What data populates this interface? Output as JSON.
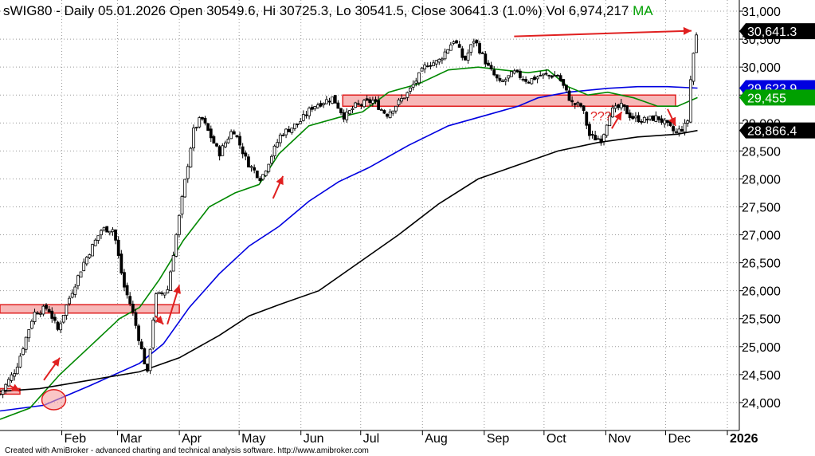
{
  "header": {
    "title": "sWIG80 - Daily 05.01.2026 Open 30549.6, Hi 30725.3, Lo 30541.5, Close 30641.3 (1.0%) Vol 6,974,217",
    "ma_label": "MA",
    "ma_color": "#00a000"
  },
  "footer": "Created with AmiBroker - advanced charting and technical analysis software. http://www.amibroker.com",
  "badges": [
    {
      "name": "close-badge",
      "text": "30,641.3",
      "value": 30641.3,
      "bg": "#000000",
      "fg": "#ffffff"
    },
    {
      "name": "ma-blue-badge",
      "text": "29,623.9",
      "value": 29623.9,
      "bg": "#0000e0",
      "fg": "#ffffff"
    },
    {
      "name": "ma-green-badge",
      "text": "29,455",
      "value": 29455,
      "bg": "#00a000",
      "fg": "#ffffff"
    },
    {
      "name": "ma-black-badge",
      "text": "28,866.4",
      "value": 28866.4,
      "bg": "#000000",
      "fg": "#ffffff"
    }
  ],
  "annotation_text": "???",
  "colors": {
    "annotation": "#e02020",
    "zone_fill": "#f7b8b8",
    "grid": "#999999"
  },
  "chart_data": {
    "type": "candlestick",
    "title": "sWIG80 - Daily 05.01.2026 Open 30549.6, Hi 30725.3, Lo 30541.5, Close 30641.3 (1.0%) Vol 6,974,217",
    "ylim": [
      23500,
      31200
    ],
    "y_ticks": [
      24000,
      24500,
      25000,
      25500,
      26000,
      26500,
      27000,
      27500,
      28000,
      28500,
      29000,
      29500,
      30000,
      30500,
      31000
    ],
    "y_tick_labels": [
      "24,000",
      "24,500",
      "25,000",
      "25,500",
      "26,000",
      "26,500",
      "27,000",
      "27,500",
      "28,000",
      "28,500",
      "29,000",
      "29,500",
      "30,000",
      "30,500",
      "31,000"
    ],
    "x_labels": [
      "Feb",
      "Mar",
      "Apr",
      "May",
      "Jun",
      "Jul",
      "Aug",
      "Sep",
      "Oct",
      "Nov",
      "Dec",
      "2026"
    ],
    "x_label_days": [
      31,
      59,
      90,
      120,
      151,
      181,
      212,
      243,
      273,
      304,
      334,
      365
    ],
    "x_range_days": [
      0,
      371
    ],
    "grid": true,
    "price_path": [
      [
        0,
        24150
      ],
      [
        8,
        24600
      ],
      [
        17,
        25600
      ],
      [
        24,
        25700
      ],
      [
        29,
        25300
      ],
      [
        34,
        25800
      ],
      [
        42,
        26500
      ],
      [
        51,
        27100
      ],
      [
        57,
        27100
      ],
      [
        62,
        26100
      ],
      [
        66,
        25700
      ],
      [
        70,
        25100
      ],
      [
        74,
        24500
      ],
      [
        78,
        25900
      ],
      [
        84,
        26000
      ],
      [
        88,
        26900
      ],
      [
        93,
        28000
      ],
      [
        97,
        28850
      ],
      [
        101,
        29100
      ],
      [
        110,
        28450
      ],
      [
        117,
        28900
      ],
      [
        124,
        28300
      ],
      [
        131,
        28000
      ],
      [
        136,
        28400
      ],
      [
        141,
        28800
      ],
      [
        150,
        29000
      ],
      [
        157,
        29300
      ],
      [
        167,
        29450
      ],
      [
        173,
        29100
      ],
      [
        178,
        29300
      ],
      [
        187,
        29400
      ],
      [
        194,
        29150
      ],
      [
        205,
        29550
      ],
      [
        214,
        30050
      ],
      [
        220,
        30100
      ],
      [
        228,
        30500
      ],
      [
        233,
        30100
      ],
      [
        238,
        30500
      ],
      [
        245,
        30000
      ],
      [
        251,
        29700
      ],
      [
        258,
        29900
      ],
      [
        265,
        29750
      ],
      [
        271,
        29850
      ],
      [
        280,
        29850
      ],
      [
        287,
        29350
      ],
      [
        292,
        29300
      ],
      [
        296,
        28750
      ],
      [
        302,
        28700
      ],
      [
        306,
        29200
      ],
      [
        312,
        29300
      ],
      [
        317,
        29100
      ],
      [
        323,
        29050
      ],
      [
        330,
        29100
      ],
      [
        335,
        28950
      ],
      [
        339,
        28820
      ],
      [
        343,
        28920
      ],
      [
        345,
        29000
      ],
      [
        347,
        30000
      ],
      [
        349,
        30500
      ],
      [
        350,
        30641
      ]
    ],
    "series": [
      {
        "name": "",
        "color": "#0000e0",
        "points": [
          [
            0,
            23850
          ],
          [
            22,
            23950
          ],
          [
            45,
            24300
          ],
          [
            70,
            24700
          ],
          [
            82,
            25050
          ],
          [
            95,
            25700
          ],
          [
            110,
            26300
          ],
          [
            125,
            26800
          ],
          [
            140,
            27150
          ],
          [
            155,
            27600
          ],
          [
            170,
            27950
          ],
          [
            185,
            28200
          ],
          [
            205,
            28600
          ],
          [
            225,
            28950
          ],
          [
            245,
            29150
          ],
          [
            260,
            29300
          ],
          [
            270,
            29450
          ],
          [
            285,
            29550
          ],
          [
            305,
            29620
          ],
          [
            320,
            29650
          ],
          [
            335,
            29650
          ],
          [
            350,
            29624
          ]
        ]
      },
      {
        "name": "",
        "color": "#008800",
        "points": [
          [
            0,
            23700
          ],
          [
            15,
            23900
          ],
          [
            30,
            24500
          ],
          [
            45,
            25000
          ],
          [
            60,
            25500
          ],
          [
            70,
            25700
          ],
          [
            80,
            26200
          ],
          [
            92,
            26900
          ],
          [
            105,
            27500
          ],
          [
            118,
            27750
          ],
          [
            130,
            27900
          ],
          [
            140,
            28450
          ],
          [
            155,
            28950
          ],
          [
            170,
            29100
          ],
          [
            182,
            29200
          ],
          [
            195,
            29550
          ],
          [
            210,
            29700
          ],
          [
            225,
            29950
          ],
          [
            240,
            30000
          ],
          [
            252,
            29950
          ],
          [
            265,
            29900
          ],
          [
            275,
            29950
          ],
          [
            285,
            29650
          ],
          [
            295,
            29500
          ],
          [
            305,
            29550
          ],
          [
            318,
            29450
          ],
          [
            330,
            29300
          ],
          [
            340,
            29300
          ],
          [
            350,
            29455
          ]
        ]
      },
      {
        "name": "",
        "color": "#000000",
        "points": [
          [
            0,
            24200
          ],
          [
            20,
            24250
          ],
          [
            45,
            24400
          ],
          [
            70,
            24550
          ],
          [
            90,
            24800
          ],
          [
            110,
            25200
          ],
          [
            125,
            25550
          ],
          [
            140,
            25750
          ],
          [
            160,
            26000
          ],
          [
            180,
            26500
          ],
          [
            200,
            27000
          ],
          [
            220,
            27550
          ],
          [
            240,
            28000
          ],
          [
            260,
            28250
          ],
          [
            280,
            28500
          ],
          [
            300,
            28650
          ],
          [
            320,
            28750
          ],
          [
            340,
            28800
          ],
          [
            350,
            28866
          ]
        ]
      }
    ],
    "zones": [
      {
        "x": [
          0,
          90
        ],
        "y": [
          25600,
          25750
        ]
      },
      {
        "x": [
          0,
          10
        ],
        "y": [
          24150,
          24250
        ]
      },
      {
        "x": [
          172,
          339
        ],
        "y": [
          29300,
          29500
        ]
      }
    ],
    "arrows": [
      [
        [
          5,
          24300
        ],
        [
          10,
          24200
        ]
      ],
      [
        [
          22,
          24400
        ],
        [
          30,
          24800
        ]
      ],
      [
        [
          78,
          25550
        ],
        [
          82,
          25400
        ]
      ],
      [
        [
          84,
          25400
        ],
        [
          90,
          26100
        ]
      ],
      [
        [
          137,
          27650
        ],
        [
          142,
          28050
        ]
      ],
      [
        [
          307,
          28900
        ],
        [
          312,
          29200
        ]
      ],
      [
        [
          335,
          29250
        ],
        [
          339,
          28950
        ]
      ],
      [
        [
          258,
          30550
        ],
        [
          347,
          30650
        ]
      ]
    ],
    "circles": [
      {
        "cx": 27,
        "cy": 24050,
        "rx": 6,
        "ry": 180
      }
    ]
  }
}
